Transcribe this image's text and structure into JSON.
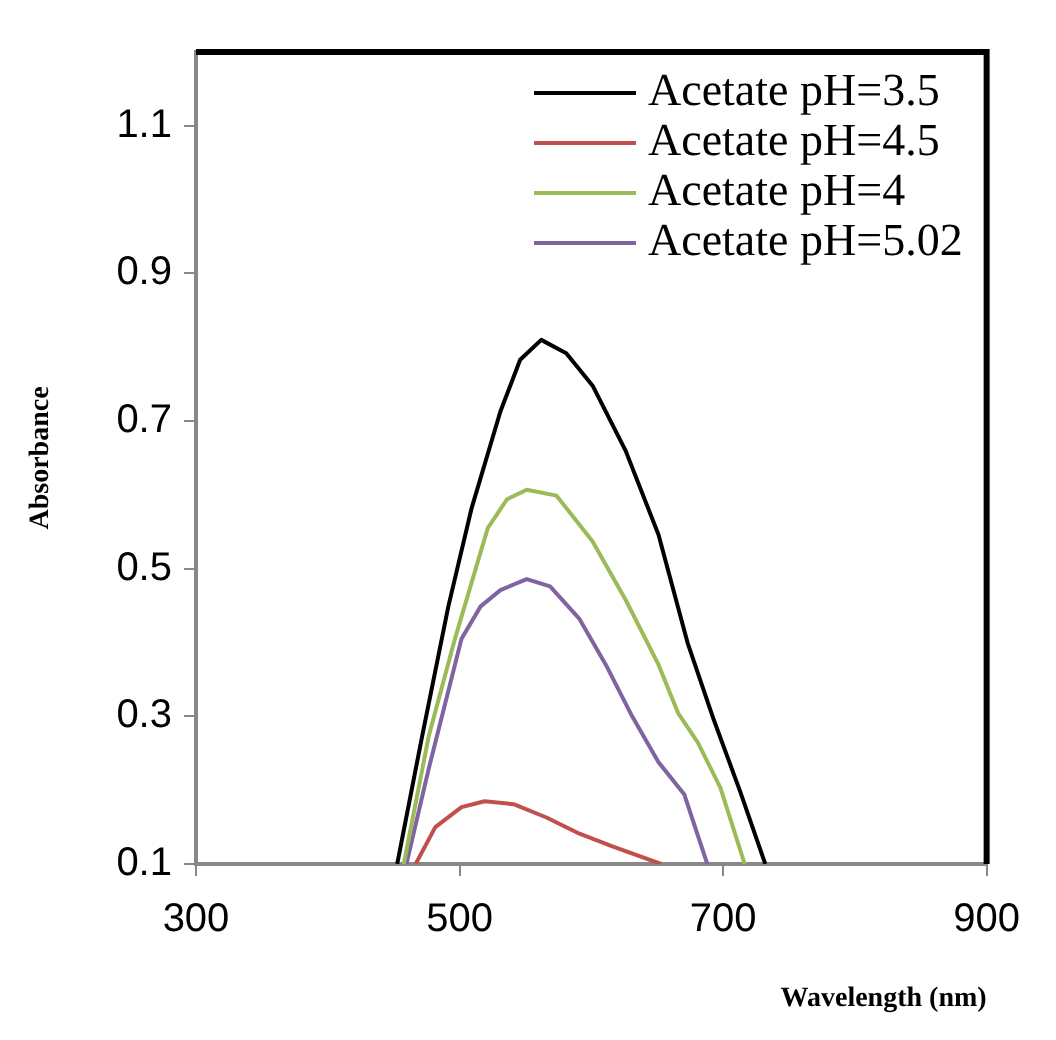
{
  "chart_data": {
    "type": "line",
    "xlabel": "Wavelength (nm)",
    "ylabel": "Absorbance",
    "xlim": [
      300,
      900
    ],
    "xticks": [
      300,
      500,
      700,
      900
    ],
    "ylim": [
      0.1,
      1.2
    ],
    "yticks": [
      0.1,
      0.3,
      0.5,
      0.7,
      0.9,
      1.1
    ],
    "legend": "top right",
    "marker": "none",
    "line_style": "solid",
    "series": [
      {
        "name": "Acetate pH=3.5",
        "color": "#000000",
        "x": [
          452.7,
          471.6,
          491.5,
          509,
          531,
          546,
          562,
          581,
          601,
          626,
          651,
          673,
          693,
          713,
          732
        ],
        "values": [
          0.1,
          0.273,
          0.449,
          0.581,
          0.713,
          0.783,
          0.81,
          0.792,
          0.748,
          0.66,
          0.546,
          0.4,
          0.295,
          0.198,
          0.1
        ]
      },
      {
        "name": "Acetate pH=4.5",
        "color": "#c0504d",
        "x": [
          466.7,
          481.6,
          501.5,
          519,
          541,
          566,
          591,
          616,
          653
        ],
        "values": [
          0.1,
          0.15,
          0.177,
          0.185,
          0.181,
          0.163,
          0.141,
          0.124,
          0.1
        ]
      },
      {
        "name": "Acetate pH=4",
        "color": "#9bbb59",
        "x": [
          457.7,
          476.6,
          496.5,
          521.4,
          536,
          551,
          573.6,
          601,
          626,
          651,
          666,
          681,
          698,
          716.4
        ],
        "values": [
          0.1,
          0.273,
          0.405,
          0.555,
          0.594,
          0.607,
          0.599,
          0.537,
          0.458,
          0.37,
          0.304,
          0.264,
          0.203,
          0.1
        ]
      },
      {
        "name": "Acetate pH=5.02",
        "color": "#8064a2",
        "x": [
          459.7,
          476.6,
          501.5,
          516,
          531,
          551,
          568.7,
          591,
          611,
          631,
          651,
          670.6,
          688
        ],
        "values": [
          0.1,
          0.229,
          0.405,
          0.449,
          0.471,
          0.486,
          0.476,
          0.432,
          0.37,
          0.3,
          0.238,
          0.194,
          0.1
        ]
      }
    ]
  }
}
